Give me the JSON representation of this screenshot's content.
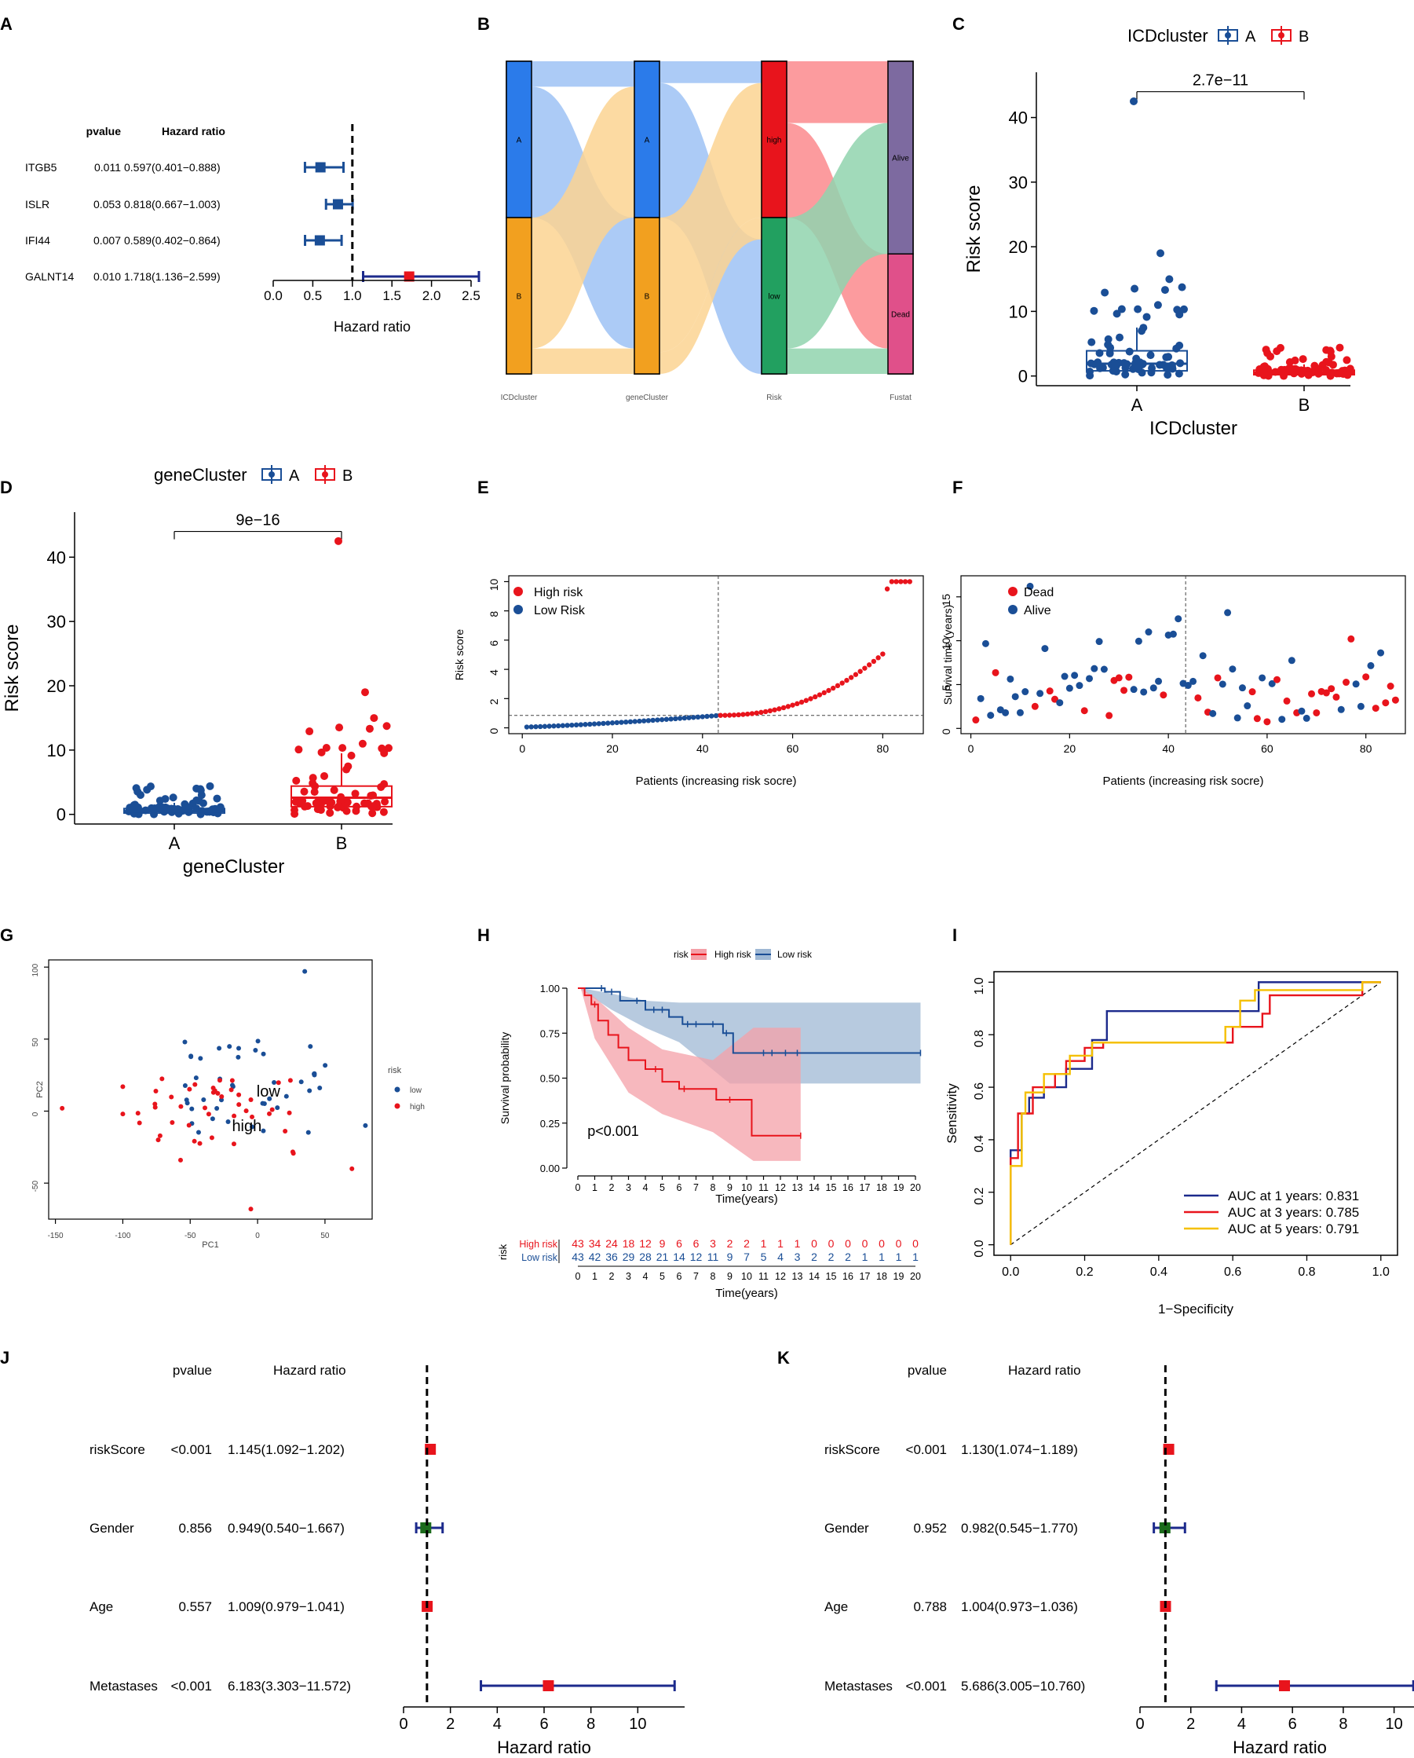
{
  "colors": {
    "blue": "#1a4e96",
    "red": "#e8141c",
    "green": "#1b6b1b",
    "navy": "#1c2a8c",
    "orange": "#f2a01f",
    "gold": "#f5c000",
    "alluvBlue": "#2b7bea",
    "alluvGreen": "#22a060",
    "alluvPurple": "#7d6aa0",
    "alluvPink": "#e0508a",
    "flowBlue": "#9ec2f5",
    "flowOrange": "#fcd392",
    "flowRed": "#fb8a8d",
    "flowGreen": "#90d4ae",
    "ciRed": "#f4a0a8",
    "ciBlue": "#9fb8d4",
    "grid": "#333333"
  },
  "panel_labels": {
    "A": "A",
    "B": "B",
    "C": "C",
    "D": "D",
    "E": "E",
    "F": "F",
    "G": "G",
    "H": "H",
    "I": "I",
    "J": "J",
    "K": "K"
  },
  "chart_data": [
    {
      "id": "A",
      "type": "forest",
      "col_pvalue": "pvalue",
      "col_hr": "Hazard ratio",
      "rows": [
        {
          "name": "ITGB5",
          "pvalue": "0.011",
          "hr_text": "0.597(0.401−0.888)",
          "hr": 0.597,
          "lo": 0.401,
          "hi": 0.888,
          "color": "blue"
        },
        {
          "name": "ISLR",
          "pvalue": "0.053",
          "hr_text": "0.818(0.667−1.003)",
          "hr": 0.818,
          "lo": 0.667,
          "hi": 1.003,
          "color": "blue"
        },
        {
          "name": "IFI44",
          "pvalue": "0.007",
          "hr_text": "0.589(0.402−0.864)",
          "hr": 0.589,
          "lo": 0.402,
          "hi": 0.864,
          "color": "blue"
        },
        {
          "name": "GALNT14",
          "pvalue": "0.010",
          "hr_text": "1.718(1.136−2.599)",
          "hr": 1.718,
          "lo": 1.136,
          "hi": 2.599,
          "color": "red"
        }
      ],
      "xlim": [
        0,
        2.5
      ],
      "ticks": [
        "0.0",
        "0.5",
        "1.0",
        "1.5",
        "2.0",
        "2.5"
      ],
      "xlabel": "Hazard ratio"
    },
    {
      "id": "B",
      "type": "alluvial",
      "axes": [
        "ICDcluster",
        "geneCluster",
        "Risk",
        "Fustat"
      ],
      "strata": [
        [
          {
            "label": "A",
            "size": 43,
            "color": "alluvBlue"
          },
          {
            "label": "B",
            "size": 43,
            "color": "orange"
          }
        ],
        [
          {
            "label": "A",
            "size": 43,
            "color": "alluvBlue"
          },
          {
            "label": "B",
            "size": 43,
            "color": "orange"
          }
        ],
        [
          {
            "label": "high",
            "size": 43,
            "color": "red"
          },
          {
            "label": "low",
            "size": 43,
            "color": "alluvGreen"
          }
        ],
        [
          {
            "label": "Alive",
            "size": 53,
            "color": "alluvPurple"
          },
          {
            "label": "Dead",
            "size": 33,
            "color": "alluvPink"
          }
        ]
      ]
    },
    {
      "id": "C",
      "type": "boxplot",
      "legend_title": "ICDcluster",
      "groups": [
        "A",
        "B"
      ],
      "p_text": "2.7e−11",
      "ylabel": "Risk score",
      "xlabel": "ICDcluster",
      "yticks": [
        0,
        10,
        20,
        30,
        40
      ],
      "ylim": [
        -1.5,
        47
      ],
      "box": [
        {
          "group": "A",
          "color": "blue",
          "q1": 0.8,
          "median": 1.9,
          "q3": 3.9,
          "lw": 0.0,
          "uw": 7.5
        },
        {
          "group": "B",
          "color": "red",
          "q1": 0.2,
          "median": 0.5,
          "q3": 0.9,
          "lw": 0.0,
          "uw": 1.8
        }
      ]
    },
    {
      "id": "D",
      "type": "boxplot",
      "legend_title": "geneCluster",
      "groups": [
        "A",
        "B"
      ],
      "p_text": "9e−16",
      "ylabel": "Risk score",
      "xlabel": "geneCluster",
      "yticks": [
        0,
        10,
        20,
        30,
        40
      ],
      "ylim": [
        -1.5,
        47
      ],
      "box": [
        {
          "group": "A",
          "color": "blue",
          "q1": 0.2,
          "median": 0.5,
          "q3": 0.9,
          "lw": 0.0,
          "uw": 1.8
        },
        {
          "group": "B",
          "color": "red",
          "q1": 1.2,
          "median": 2.6,
          "q3": 4.4,
          "lw": 0.0,
          "uw": 9.5
        }
      ]
    },
    {
      "id": "E",
      "type": "scatter",
      "legend": [
        "High risk",
        "Low Risk"
      ],
      "ylabel": "Risk score",
      "xlabel": "Patients (increasing risk socre)",
      "xticks": [
        0,
        20,
        40,
        60,
        80
      ],
      "yticks": [
        0,
        2,
        4,
        6,
        8,
        10
      ],
      "xlim": [
        -3,
        89
      ],
      "ylim": [
        -0.4,
        10.4
      ],
      "cutoff_x": 43.5,
      "cutoff_y": 0.85
    },
    {
      "id": "F",
      "type": "scatter",
      "legend": [
        "Dead",
        "Alive"
      ],
      "ylabel": "Survival time (years)",
      "xlabel": "Patients (increasing risk socre)",
      "xticks": [
        0,
        20,
        40,
        60,
        80
      ],
      "yticks": [
        0,
        5,
        10,
        15
      ],
      "xlim": [
        -2,
        88
      ],
      "ylim": [
        -0.6,
        17.4
      ],
      "cutoff_x": 43.5
    },
    {
      "id": "G",
      "type": "scatter",
      "xlabel": "PC1",
      "ylabel": "PC2",
      "legend_title": "risk",
      "legend": [
        "low",
        "high"
      ],
      "labels": [
        "low",
        "high"
      ],
      "xticks": [
        -150,
        -100,
        -50,
        0,
        50
      ],
      "yticks": [
        -50,
        0,
        50,
        100
      ],
      "xlim": [
        -155,
        85
      ],
      "ylim": [
        -75,
        105
      ]
    },
    {
      "id": "H",
      "type": "kaplan-meier",
      "legend_title": "risk",
      "legend": [
        "High risk",
        "Low risk"
      ],
      "p_text": "p<0.001",
      "ylabel": "Survival probability",
      "xlabel": "Time(years)",
      "yticks": [
        "0.00",
        "0.25",
        "0.50",
        "0.75",
        "1.00"
      ],
      "xticks": [
        0,
        1,
        2,
        3,
        4,
        5,
        6,
        7,
        8,
        9,
        10,
        11,
        12,
        13,
        14,
        15,
        16,
        17,
        18,
        19,
        20
      ],
      "table_title": "risk",
      "table": [
        {
          "name": "High risk",
          "color": "red",
          "values": [
            43,
            34,
            24,
            18,
            12,
            9,
            6,
            6,
            3,
            2,
            2,
            1,
            1,
            1,
            0,
            0,
            0,
            0,
            0,
            0,
            0
          ]
        },
        {
          "name": "Low risk",
          "color": "blue",
          "values": [
            43,
            42,
            36,
            29,
            28,
            21,
            14,
            12,
            11,
            9,
            7,
            5,
            4,
            3,
            2,
            2,
            2,
            1,
            1,
            1,
            1
          ]
        }
      ]
    },
    {
      "id": "I",
      "type": "line",
      "xlabel": "1−Specificity",
      "ylabel": "Sensitivity",
      "ticks": [
        "0.0",
        "0.2",
        "0.4",
        "0.6",
        "0.8",
        "1.0"
      ],
      "series": [
        {
          "name": "AUC at 1 years: 0.831",
          "color": "navy"
        },
        {
          "name": "AUC at 3 years: 0.785",
          "color": "red"
        },
        {
          "name": "AUC at 5 years: 0.791",
          "color": "gold"
        }
      ]
    },
    {
      "id": "J",
      "type": "forest",
      "col_pvalue": "pvalue",
      "col_hr": "Hazard ratio",
      "rows": [
        {
          "name": "riskScore",
          "pvalue": "<0.001",
          "hr_text": "1.145(1.092−1.202)",
          "hr": 1.145,
          "lo": 1.092,
          "hi": 1.202,
          "color": "red"
        },
        {
          "name": "Gender",
          "pvalue": "0.856",
          "hr_text": "0.949(0.540−1.667)",
          "hr": 0.949,
          "lo": 0.54,
          "hi": 1.667,
          "color": "green"
        },
        {
          "name": "Age",
          "pvalue": "0.557",
          "hr_text": "1.009(0.979−1.041)",
          "hr": 1.009,
          "lo": 0.979,
          "hi": 1.041,
          "color": "red"
        },
        {
          "name": "Metastases",
          "pvalue": "<0.001",
          "hr_text": "6.183(3.303−11.572)",
          "hr": 6.183,
          "lo": 3.303,
          "hi": 11.572,
          "color": "red"
        }
      ],
      "xlim": [
        0,
        12
      ],
      "ticks": [
        "0",
        "2",
        "4",
        "6",
        "8",
        "10"
      ],
      "xlabel": "Hazard ratio"
    },
    {
      "id": "K",
      "type": "forest",
      "col_pvalue": "pvalue",
      "col_hr": "Hazard ratio",
      "rows": [
        {
          "name": "riskScore",
          "pvalue": "<0.001",
          "hr_text": "1.130(1.074−1.189)",
          "hr": 1.13,
          "lo": 1.074,
          "hi": 1.189,
          "color": "red"
        },
        {
          "name": "Gender",
          "pvalue": "0.952",
          "hr_text": "0.982(0.545−1.770)",
          "hr": 0.982,
          "lo": 0.545,
          "hi": 1.77,
          "color": "green"
        },
        {
          "name": "Age",
          "pvalue": "0.788",
          "hr_text": "1.004(0.973−1.036)",
          "hr": 1.004,
          "lo": 0.973,
          "hi": 1.036,
          "color": "red"
        },
        {
          "name": "Metastases",
          "pvalue": "<0.001",
          "hr_text": "5.686(3.005−10.760)",
          "hr": 5.686,
          "lo": 3.005,
          "hi": 10.76,
          "color": "red"
        }
      ],
      "xlim": [
        0,
        11
      ],
      "ticks": [
        "0",
        "2",
        "4",
        "6",
        "8",
        "10"
      ],
      "xlabel": "Hazard ratio"
    }
  ]
}
